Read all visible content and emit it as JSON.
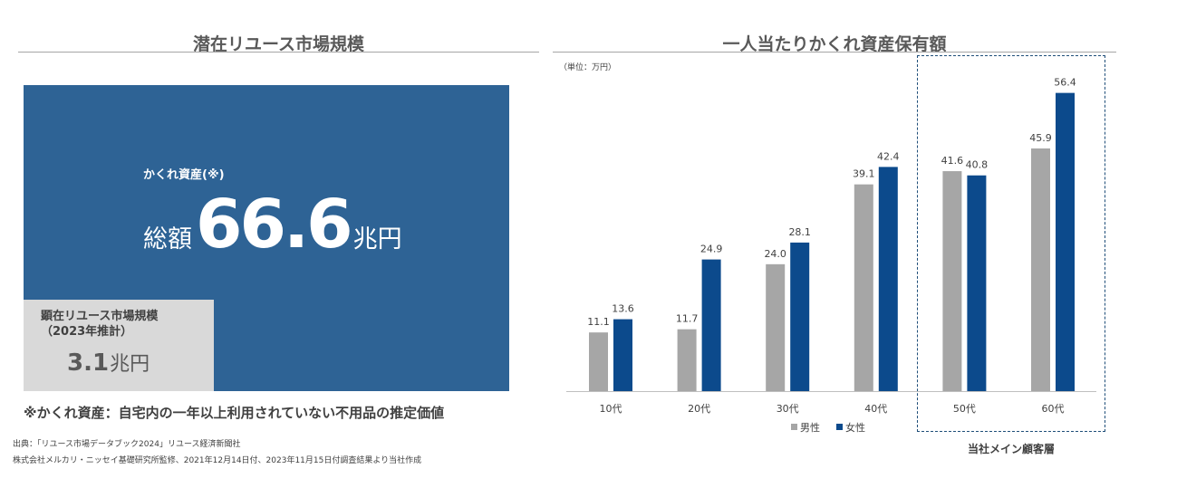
{
  "left_panel": {
    "title": "潜在リユース市場規模",
    "hidden_assets": {
      "label": "かくれ資産(※)",
      "total_prefix": "総額",
      "total_value": "66.6",
      "total_unit": "兆円"
    },
    "visible_market": {
      "label_line1": "顕在リユース市場規模",
      "label_line2": "（2023年推計）",
      "value": "3.1",
      "unit": "兆円"
    },
    "note": "※かくれ資産：自宅内の一年以上利用されていない不用品の推定価値",
    "source_line1": "出典：「リユース市場データブック2024」リユース経済新聞社",
    "source_line2": "株式会社メルカリ・ニッセイ基礎研究所監修、2021年12月14日付、2023年11月15日付調査結果より当社作成"
  },
  "right_panel": {
    "title": "一人当たりかくれ資産保有額",
    "unit_note": "（単位：万円）",
    "highlight_caption": "当社メイン顧客層"
  },
  "colors": {
    "big_block": "#2e6395",
    "small_block": "#d9d9d9",
    "male": "#a6a6a6",
    "female": "#0c4a8c",
    "highlight_border": "#1f4e79"
  },
  "chart_data": {
    "type": "bar",
    "categories": [
      "10代",
      "20代",
      "30代",
      "40代",
      "50代",
      "60代"
    ],
    "series": [
      {
        "name": "男性",
        "values": [
          11.1,
          11.7,
          24.0,
          39.1,
          41.6,
          45.9
        ]
      },
      {
        "name": "女性",
        "values": [
          13.6,
          24.9,
          28.1,
          42.4,
          40.8,
          56.4
        ]
      }
    ],
    "value_labels": {
      "男性": [
        "11.1",
        "11.7",
        "24.0",
        "39.1",
        "41.6",
        "45.9"
      ],
      "女性": [
        "13.6",
        "24.9",
        "28.1",
        "42.4",
        "40.8",
        "56.4"
      ]
    },
    "ylim": [
      0,
      60
    ],
    "grid": false,
    "legend_position": "bottom",
    "highlighted_categories": [
      "50代",
      "60代"
    ]
  }
}
